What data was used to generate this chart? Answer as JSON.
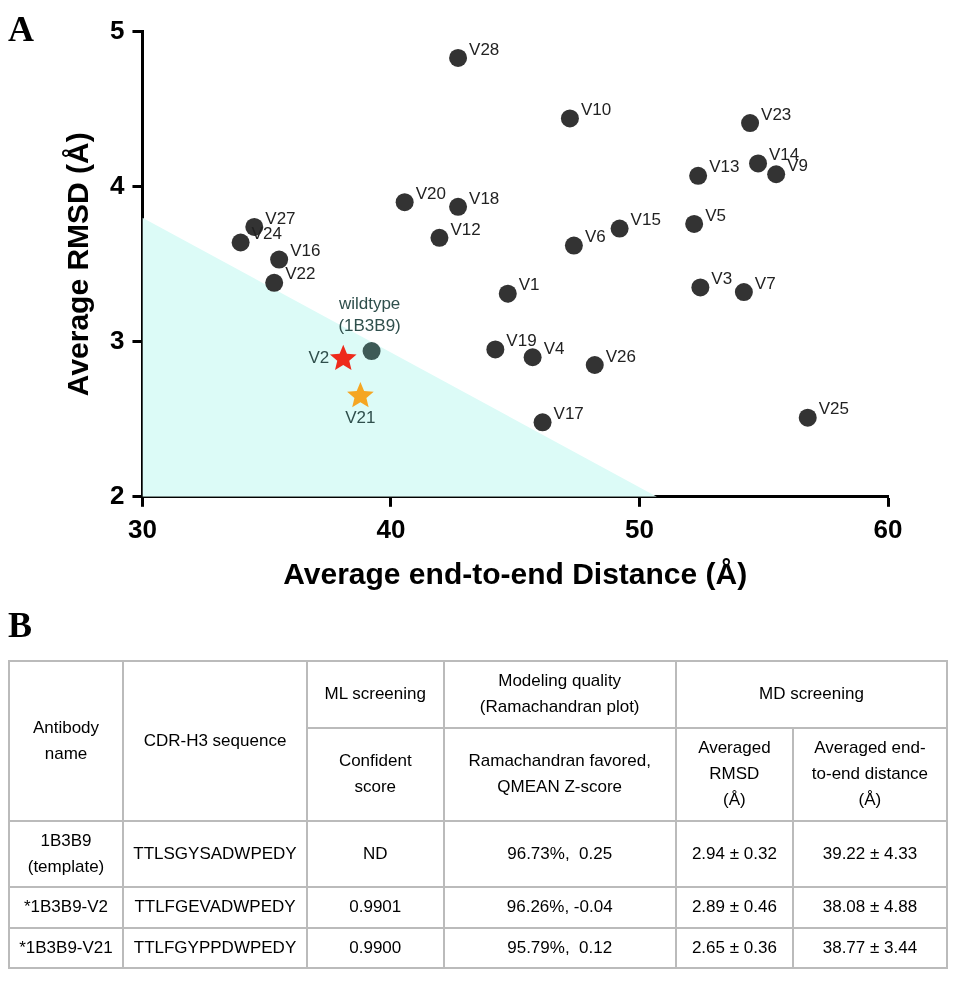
{
  "chart_data": [
    {
      "type": "scatter",
      "title": "A",
      "xlabel": "Average end-to-end Distance (Å)",
      "ylabel": "Average RMSD (Å)",
      "xlim": [
        30,
        60
      ],
      "xticks": [
        30,
        40,
        50,
        60
      ],
      "ylim": [
        2,
        5
      ],
      "yticks": [
        2,
        3,
        4,
        5
      ],
      "grid": false,
      "legend": false,
      "marker": "circle",
      "series": [
        {
          "type": "area",
          "color": "#dcfbf7",
          "marker": "none",
          "x": [
            30,
            50.7
          ],
          "values": [
            3.8,
            2.0
          ]
        },
        {
          "color": "#333333",
          "x": [
            42.7,
            47.2,
            54.45,
            52.36,
            54.77,
            55.5,
            40.55,
            42.7,
            34.5,
            33.95,
            35.5,
            35.3,
            41.95,
            47.36,
            49.2,
            52.2,
            44.7,
            52.45,
            54.2,
            44.2,
            45.7,
            48.2,
            46.1,
            56.77
          ],
          "values": [
            4.83,
            4.44,
            4.41,
            4.07,
            4.15,
            4.08,
            3.9,
            3.87,
            3.74,
            3.64,
            3.53,
            3.38,
            3.67,
            3.62,
            3.73,
            3.76,
            3.31,
            3.35,
            3.32,
            2.95,
            2.9,
            2.85,
            2.48,
            2.51
          ],
          "value_labels": [
            "V28",
            "V10",
            "V23",
            "V13",
            "V14",
            "V9",
            "V20",
            "V18",
            "V27",
            "V24",
            "V16",
            "V22",
            "V12",
            "V6",
            "V15",
            "V5",
            "V1",
            "V3",
            "V7",
            "V19",
            "V4",
            "V26",
            "V17",
            "V25"
          ]
        },
        {
          "color": "#3e5a56",
          "x": [
            39.22
          ],
          "values": [
            2.94
          ],
          "value_labels": [
            "wildtype\n(1B3B9)"
          ]
        },
        {
          "color": "#ee2a1b",
          "marker": "star",
          "x": [
            38.08
          ],
          "values": [
            2.89
          ],
          "value_labels": [
            "V2"
          ]
        },
        {
          "color": "#f5a623",
          "marker": "star",
          "x": [
            38.77
          ],
          "values": [
            2.65
          ],
          "value_labels": [
            "V21"
          ]
        }
      ]
    },
    {
      "type": "other",
      "title": "B",
      "categories": [
        "Antibody name",
        "CDR-H3 sequence",
        "ML screening",
        "Modeling quality\n(Ramachandran plot)",
        "MD screening"
      ],
      "annotations": [
        "Confident\nscore",
        "Ramachandran favored,\nQMEAN Z-score",
        "Averaged\nRMSD\n(Å)",
        "Averaged end-\nto-end distance\n(Å)"
      ],
      "y_categories": [
        "1B3B9\n(template)",
        "*1B3B9-V2",
        "*1B3B9-V21"
      ],
      "cell_labels": [
        [
          "TTLSGYSADWPEDY",
          "ND",
          "96.73%,  0.25",
          "2.94 ± 0.32",
          "39.22 ± 4.33"
        ],
        [
          "TTLFGEVADWPEDY",
          "0.9901",
          "96.26%, -0.04",
          "2.89 ± 0.46",
          "38.08 ± 4.88"
        ],
        [
          "TTLFGYPPDWPEDY",
          "0.9900",
          "95.79%,  0.12",
          "2.65 ± 0.36",
          "38.77 ± 3.44"
        ]
      ]
    }
  ]
}
